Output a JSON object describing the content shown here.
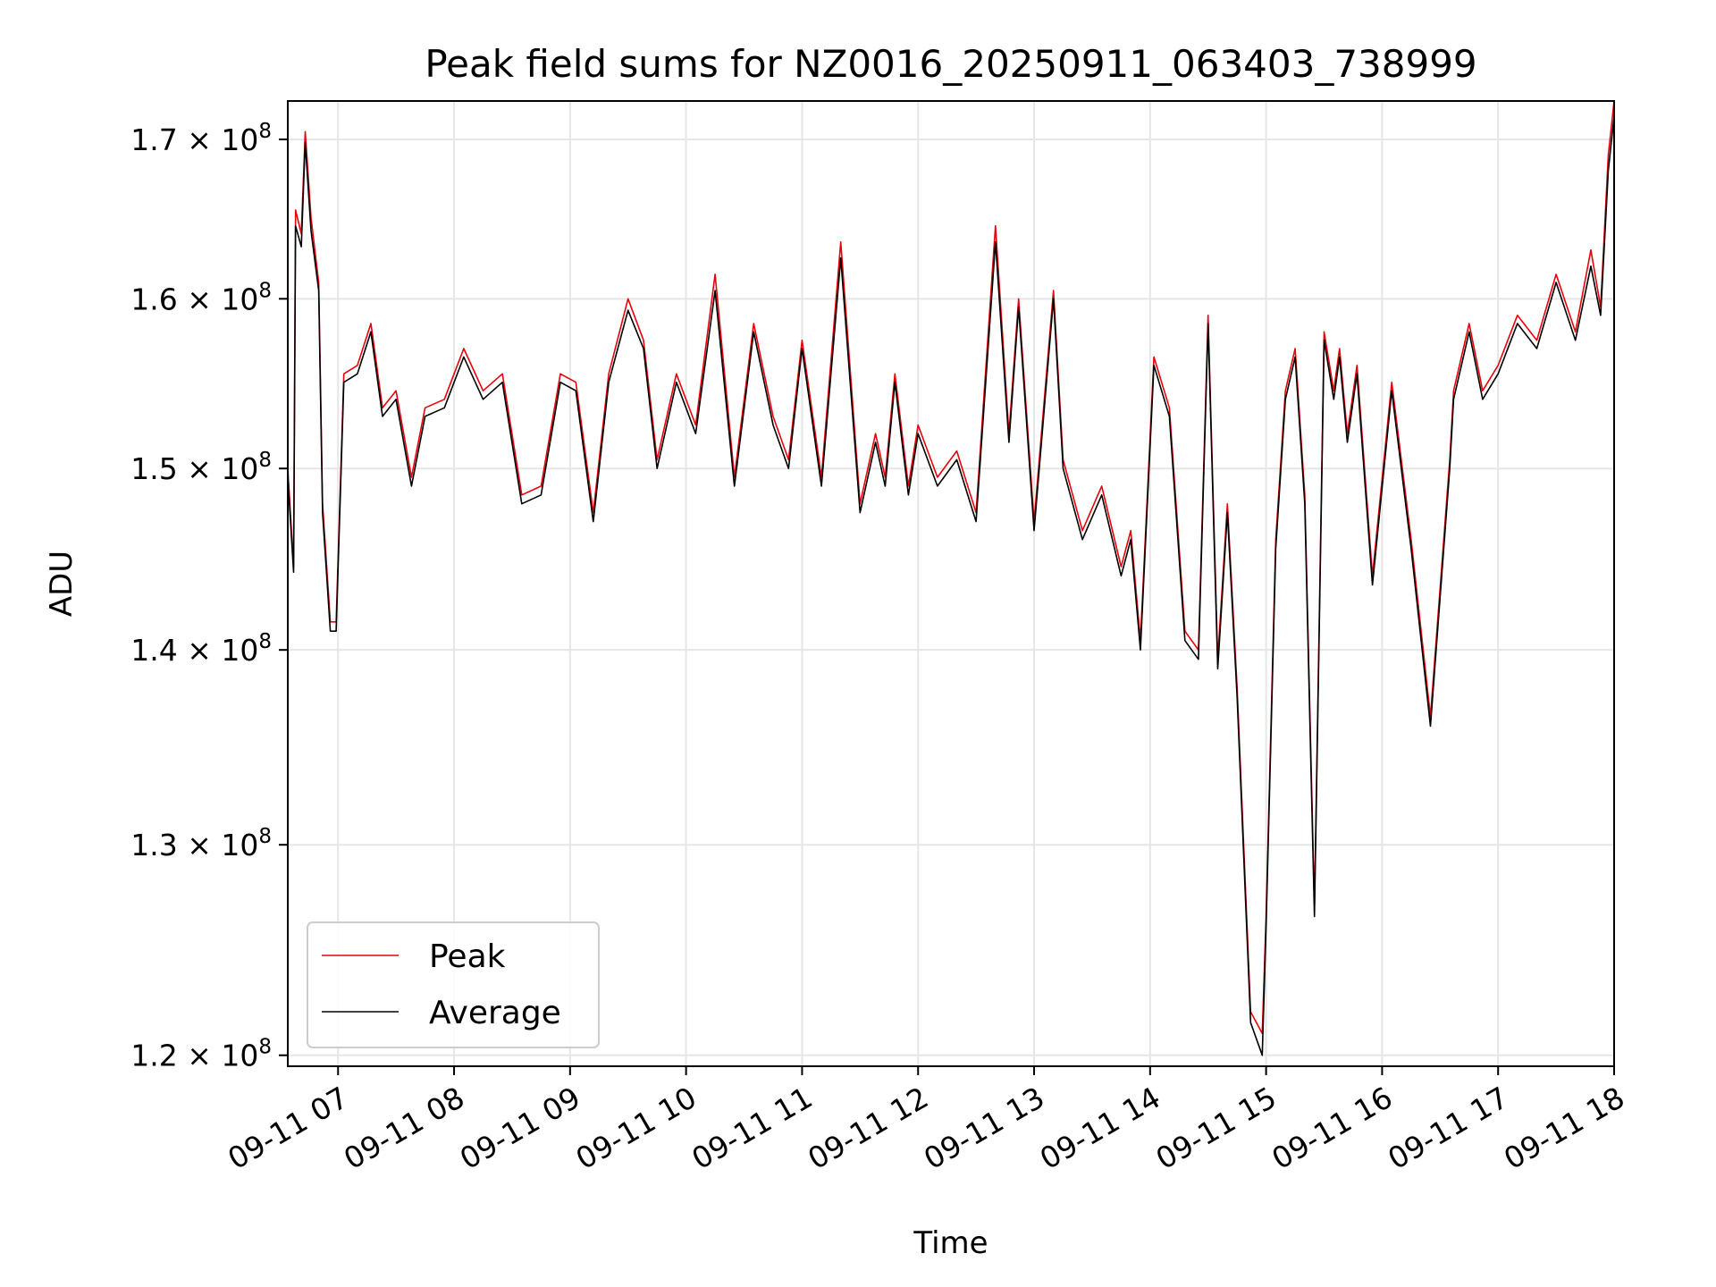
{
  "chart_data": {
    "type": "line",
    "title": "Peak field sums for NZ0016_20250911_063403_738999",
    "xlabel": "Time",
    "ylabel": "ADU",
    "y_scale": "log",
    "grid": true,
    "legend_position": "lower-left",
    "xlim": [
      "2025-09-11 06:34",
      "2025-09-11 18:00"
    ],
    "ylim": [
      119500000,
      172500000
    ],
    "x_ticks": [
      {
        "value": "2025-09-11 07:00",
        "label": "09-11 07"
      },
      {
        "value": "2025-09-11 08:00",
        "label": "09-11 08"
      },
      {
        "value": "2025-09-11 09:00",
        "label": "09-11 09"
      },
      {
        "value": "2025-09-11 10:00",
        "label": "09-11 10"
      },
      {
        "value": "2025-09-11 11:00",
        "label": "09-11 11"
      },
      {
        "value": "2025-09-11 12:00",
        "label": "09-11 12"
      },
      {
        "value": "2025-09-11 13:00",
        "label": "09-11 13"
      },
      {
        "value": "2025-09-11 14:00",
        "label": "09-11 14"
      },
      {
        "value": "2025-09-11 15:00",
        "label": "09-11 15"
      },
      {
        "value": "2025-09-11 16:00",
        "label": "09-11 16"
      },
      {
        "value": "2025-09-11 17:00",
        "label": "09-11 17"
      },
      {
        "value": "2025-09-11 18:00",
        "label": "09-11 18"
      }
    ],
    "y_ticks": [
      {
        "value": 120000000,
        "mantissa": "1.2",
        "base": "10",
        "exponent": "8"
      },
      {
        "value": 130000000,
        "mantissa": "1.3",
        "base": "10",
        "exponent": "8"
      },
      {
        "value": 140000000,
        "mantissa": "1.4",
        "base": "10",
        "exponent": "8"
      },
      {
        "value": 150000000,
        "mantissa": "1.5",
        "base": "10",
        "exponent": "8"
      },
      {
        "value": 160000000,
        "mantissa": "1.6",
        "base": "10",
        "exponent": "8"
      },
      {
        "value": 170000000,
        "mantissa": "1.7",
        "base": "10",
        "exponent": "8"
      }
    ],
    "series": [
      {
        "name": "Peak",
        "color": "#e8000b",
        "x": [
          "2025-09-11 06:34",
          "2025-09-11 06:37",
          "2025-09-11 06:38",
          "2025-09-11 06:41",
          "2025-09-11 06:43",
          "2025-09-11 06:46",
          "2025-09-11 06:50",
          "2025-09-11 06:52",
          "2025-09-11 06:56",
          "2025-09-11 06:59",
          "2025-09-11 07:03",
          "2025-09-11 07:10",
          "2025-09-11 07:17",
          "2025-09-11 07:23",
          "2025-09-11 07:30",
          "2025-09-11 07:38",
          "2025-09-11 07:45",
          "2025-09-11 07:55",
          "2025-09-11 08:05",
          "2025-09-11 08:15",
          "2025-09-11 08:25",
          "2025-09-11 08:35",
          "2025-09-11 08:45",
          "2025-09-11 08:55",
          "2025-09-11 09:03",
          "2025-09-11 09:12",
          "2025-09-11 09:20",
          "2025-09-11 09:30",
          "2025-09-11 09:38",
          "2025-09-11 09:45",
          "2025-09-11 09:55",
          "2025-09-11 10:05",
          "2025-09-11 10:15",
          "2025-09-11 10:25",
          "2025-09-11 10:35",
          "2025-09-11 10:45",
          "2025-09-11 10:53",
          "2025-09-11 11:00",
          "2025-09-11 11:10",
          "2025-09-11 11:20",
          "2025-09-11 11:30",
          "2025-09-11 11:38",
          "2025-09-11 11:43",
          "2025-09-11 11:48",
          "2025-09-11 11:55",
          "2025-09-11 12:00",
          "2025-09-11 12:10",
          "2025-09-11 12:20",
          "2025-09-11 12:30",
          "2025-09-11 12:40",
          "2025-09-11 12:47",
          "2025-09-11 12:52",
          "2025-09-11 13:00",
          "2025-09-11 13:10",
          "2025-09-11 13:15",
          "2025-09-11 13:25",
          "2025-09-11 13:35",
          "2025-09-11 13:45",
          "2025-09-11 13:50",
          "2025-09-11 13:55",
          "2025-09-11 14:02",
          "2025-09-11 14:10",
          "2025-09-11 14:18",
          "2025-09-11 14:25",
          "2025-09-11 14:30",
          "2025-09-11 14:35",
          "2025-09-11 14:40",
          "2025-09-11 14:45",
          "2025-09-11 14:52",
          "2025-09-11 14:58",
          "2025-09-11 15:00",
          "2025-09-11 15:05",
          "2025-09-11 15:10",
          "2025-09-11 15:15",
          "2025-09-11 15:20",
          "2025-09-11 15:25",
          "2025-09-11 15:30",
          "2025-09-11 15:35",
          "2025-09-11 15:38",
          "2025-09-11 15:42",
          "2025-09-11 15:47",
          "2025-09-11 15:55",
          "2025-09-11 16:05",
          "2025-09-11 16:15",
          "2025-09-11 16:25",
          "2025-09-11 16:35",
          "2025-09-11 16:37",
          "2025-09-11 16:45",
          "2025-09-11 16:52",
          "2025-09-11 17:00",
          "2025-09-11 17:10",
          "2025-09-11 17:20",
          "2025-09-11 17:30",
          "2025-09-11 17:40",
          "2025-09-11 17:48",
          "2025-09-11 17:53",
          "2025-09-11 17:57",
          "2025-09-11 18:00"
        ],
        "values": [
          150000000,
          144500000,
          165500000,
          164000000,
          170500000,
          165000000,
          161000000,
          148000000,
          141500000,
          141500000,
          155500000,
          156000000,
          158500000,
          153500000,
          154500000,
          149500000,
          153500000,
          154000000,
          157000000,
          154500000,
          155500000,
          148500000,
          149000000,
          155500000,
          155000000,
          147500000,
          155500000,
          160000000,
          157500000,
          150500000,
          155500000,
          152500000,
          161500000,
          149500000,
          158500000,
          153000000,
          150500000,
          157500000,
          149500000,
          163500000,
          148000000,
          152000000,
          149500000,
          155500000,
          149000000,
          152500000,
          149500000,
          151000000,
          147500000,
          164500000,
          152000000,
          160000000,
          147000000,
          160500000,
          150500000,
          146500000,
          149000000,
          144500000,
          146500000,
          140500000,
          156500000,
          153500000,
          141000000,
          140000000,
          159000000,
          139500000,
          148000000,
          138000000,
          122000000,
          121000000,
          126500000,
          146000000,
          154500000,
          157000000,
          148500000,
          127000000,
          158000000,
          154500000,
          157000000,
          152000000,
          156000000,
          144000000,
          155000000,
          146000000,
          136500000,
          150500000,
          154500000,
          158500000,
          154500000,
          156000000,
          159000000,
          157500000,
          161500000,
          158000000,
          163000000,
          159500000,
          169000000,
          172500000
        ]
      },
      {
        "name": "Average",
        "color": "#000000",
        "x": [
          "2025-09-11 06:34",
          "2025-09-11 06:37",
          "2025-09-11 06:38",
          "2025-09-11 06:41",
          "2025-09-11 06:43",
          "2025-09-11 06:46",
          "2025-09-11 06:50",
          "2025-09-11 06:52",
          "2025-09-11 06:56",
          "2025-09-11 06:59",
          "2025-09-11 07:03",
          "2025-09-11 07:10",
          "2025-09-11 07:17",
          "2025-09-11 07:23",
          "2025-09-11 07:30",
          "2025-09-11 07:38",
          "2025-09-11 07:45",
          "2025-09-11 07:55",
          "2025-09-11 08:05",
          "2025-09-11 08:15",
          "2025-09-11 08:25",
          "2025-09-11 08:35",
          "2025-09-11 08:45",
          "2025-09-11 08:55",
          "2025-09-11 09:03",
          "2025-09-11 09:12",
          "2025-09-11 09:20",
          "2025-09-11 09:30",
          "2025-09-11 09:38",
          "2025-09-11 09:45",
          "2025-09-11 09:55",
          "2025-09-11 10:05",
          "2025-09-11 10:15",
          "2025-09-11 10:25",
          "2025-09-11 10:35",
          "2025-09-11 10:45",
          "2025-09-11 10:53",
          "2025-09-11 11:00",
          "2025-09-11 11:10",
          "2025-09-11 11:20",
          "2025-09-11 11:30",
          "2025-09-11 11:38",
          "2025-09-11 11:43",
          "2025-09-11 11:48",
          "2025-09-11 11:55",
          "2025-09-11 12:00",
          "2025-09-11 12:10",
          "2025-09-11 12:20",
          "2025-09-11 12:30",
          "2025-09-11 12:40",
          "2025-09-11 12:47",
          "2025-09-11 12:52",
          "2025-09-11 13:00",
          "2025-09-11 13:10",
          "2025-09-11 13:15",
          "2025-09-11 13:25",
          "2025-09-11 13:35",
          "2025-09-11 13:45",
          "2025-09-11 13:50",
          "2025-09-11 13:55",
          "2025-09-11 14:02",
          "2025-09-11 14:10",
          "2025-09-11 14:18",
          "2025-09-11 14:25",
          "2025-09-11 14:30",
          "2025-09-11 14:35",
          "2025-09-11 14:40",
          "2025-09-11 14:45",
          "2025-09-11 14:52",
          "2025-09-11 14:58",
          "2025-09-11 15:00",
          "2025-09-11 15:05",
          "2025-09-11 15:10",
          "2025-09-11 15:15",
          "2025-09-11 15:20",
          "2025-09-11 15:25",
          "2025-09-11 15:30",
          "2025-09-11 15:35",
          "2025-09-11 15:38",
          "2025-09-11 15:42",
          "2025-09-11 15:47",
          "2025-09-11 15:55",
          "2025-09-11 16:05",
          "2025-09-11 16:15",
          "2025-09-11 16:25",
          "2025-09-11 16:35",
          "2025-09-11 16:37",
          "2025-09-11 16:45",
          "2025-09-11 16:52",
          "2025-09-11 17:00",
          "2025-09-11 17:10",
          "2025-09-11 17:20",
          "2025-09-11 17:30",
          "2025-09-11 17:40",
          "2025-09-11 17:48",
          "2025-09-11 17:53",
          "2025-09-11 17:57",
          "2025-09-11 18:00"
        ],
        "values": [
          149500000,
          144200000,
          164500000,
          163200000,
          169800000,
          164200000,
          160500000,
          147500000,
          141000000,
          141000000,
          155000000,
          155500000,
          158000000,
          153000000,
          154000000,
          149000000,
          153000000,
          153500000,
          156500000,
          154000000,
          155000000,
          148000000,
          148500000,
          155000000,
          154500000,
          147000000,
          155000000,
          159300000,
          157000000,
          150000000,
          155000000,
          152000000,
          160500000,
          149000000,
          158000000,
          152500000,
          150000000,
          157000000,
          149000000,
          162500000,
          147500000,
          151500000,
          149000000,
          155000000,
          148500000,
          152000000,
          149000000,
          150500000,
          147000000,
          163500000,
          151500000,
          159500000,
          146500000,
          160000000,
          150000000,
          146000000,
          148500000,
          144000000,
          146000000,
          140000000,
          156000000,
          153000000,
          140500000,
          139500000,
          158500000,
          139000000,
          147500000,
          137500000,
          121500000,
          120000000,
          126000000,
          145500000,
          154000000,
          156500000,
          148000000,
          126500000,
          157500000,
          154000000,
          156500000,
          151500000,
          155500000,
          143500000,
          154500000,
          145500000,
          136000000,
          150000000,
          154000000,
          158000000,
          154000000,
          155500000,
          158500000,
          157000000,
          161000000,
          157500000,
          162000000,
          159000000,
          168000000,
          171500000
        ]
      }
    ]
  }
}
